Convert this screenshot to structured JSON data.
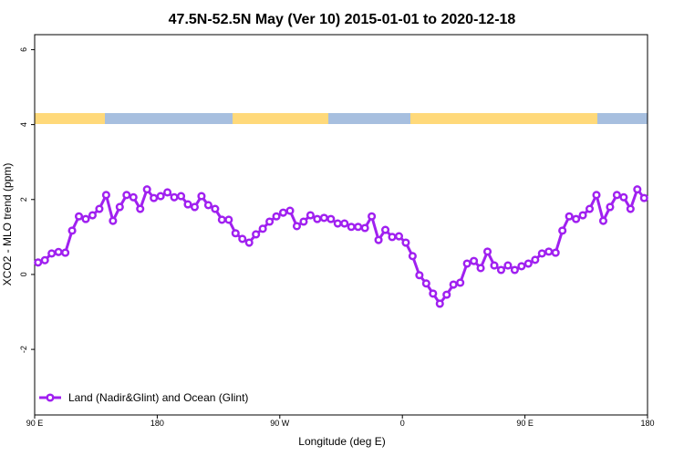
{
  "chart_data": {
    "type": "line",
    "title": "47.5N-52.5N May (Ver 10)   2015-01-01 to 2020-12-18",
    "x_label": "Longitude (deg E)",
    "y_label": "XCO2 - MLO trend (ppm)",
    "xlim": [
      90,
      540
    ],
    "ylim": [
      -3.75,
      6.4
    ],
    "xticks": [
      {
        "value": 90,
        "label": "90 E"
      },
      180,
      {
        "value": 270,
        "label": "90 W"
      },
      {
        "value": 360,
        "label": "0"
      },
      {
        "value": 450,
        "label": "90 E"
      },
      {
        "value": 540,
        "label": "180"
      }
    ],
    "yticks": [
      -2,
      0,
      2,
      4,
      6
    ],
    "legend": "bottom-left",
    "x": [
      92.5,
      97.5,
      102.5,
      107.5,
      112.5,
      117.5,
      122.5,
      127.5,
      132.5,
      137.5,
      142.5,
      147.5,
      152.5,
      157.5,
      162.5,
      167.5,
      172.5,
      177.5,
      182.5,
      187.5,
      192.5,
      197.5,
      202.5,
      207.5,
      212.5,
      217.5,
      222.5,
      227.5,
      232.5,
      237.5,
      242.5,
      247.5,
      252.5,
      257.5,
      262.5,
      267.5,
      272.5,
      277.5,
      282.5,
      287.5,
      292.5,
      297.5,
      302.5,
      307.5,
      312.5,
      317.5,
      322.5,
      327.5,
      332.5,
      337.5,
      342.5,
      347.5,
      352.5,
      357.5,
      362.5,
      367.5,
      372.5,
      377.5,
      382.5,
      387.5,
      392.5,
      397.5,
      402.5,
      407.5,
      412.5,
      417.5,
      422.5,
      427.5,
      432.5,
      437.5,
      442.5,
      447.5,
      452.5,
      457.5,
      462.5,
      467.5,
      472.5,
      477.5,
      482.5,
      487.5,
      492.5,
      497.5,
      502.5,
      507.5,
      512.5,
      517.5,
      522.5,
      527.5,
      532.5,
      537.5
    ],
    "series": [
      {
        "name": "Land (Nadir&Glint) and Ocean (Glint)",
        "color": "#a020f0",
        "values": [
          0.32,
          0.38,
          0.56,
          0.6,
          0.58,
          1.17,
          1.55,
          1.48,
          1.58,
          1.75,
          2.12,
          1.43,
          1.8,
          2.12,
          2.06,
          1.75,
          2.27,
          2.04,
          2.09,
          2.19,
          2.06,
          2.09,
          1.87,
          1.8,
          2.09,
          1.85,
          1.75,
          1.46,
          1.46,
          1.1,
          0.95,
          0.85,
          1.07,
          1.22,
          1.41,
          1.55,
          1.65,
          1.7,
          1.29,
          1.41,
          1.58,
          1.48,
          1.51,
          1.48,
          1.36,
          1.36,
          1.27,
          1.27,
          1.24,
          1.55,
          0.92,
          1.19,
          1.0,
          1.02,
          0.85,
          0.49,
          -0.02,
          -0.24,
          -0.51,
          -0.78,
          -0.54,
          -0.27,
          -0.22,
          0.29,
          0.36,
          0.17,
          0.61,
          0.24,
          0.12,
          0.24,
          0.12,
          0.22,
          0.29,
          0.39,
          0.56,
          0.61,
          0.58,
          1.17,
          1.55,
          1.48,
          1.58,
          1.75,
          2.12,
          1.43,
          1.8,
          2.12,
          2.06,
          1.75,
          2.27,
          2.04
        ]
      }
    ]
  }
}
